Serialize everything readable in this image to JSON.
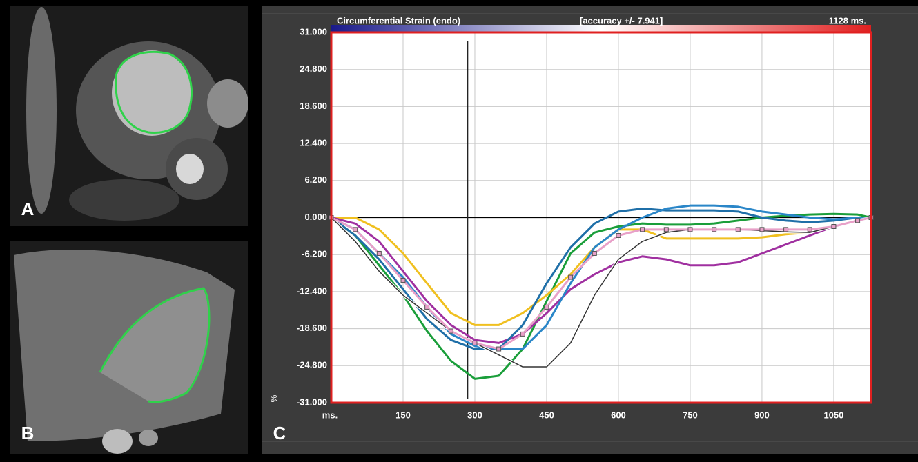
{
  "panel_labels": [
    "A",
    "B",
    "C"
  ],
  "chart_data": {
    "type": "line",
    "title": "Circumferential Strain (endo)",
    "subtitle": "[accuracy +/- 7.941]",
    "duration_label": "1128 ms.",
    "xlabel": "ms.",
    "ylabel": "%",
    "xlim": [
      0,
      1128
    ],
    "ylim": [
      -31,
      31
    ],
    "xticks": [
      150,
      300,
      450,
      600,
      750,
      900,
      1050
    ],
    "yticks": [
      {
        "value": 31,
        "label": "31.000"
      },
      {
        "value": 24.8,
        "label": "24.800"
      },
      {
        "value": 18.6,
        "label": "18.600"
      },
      {
        "value": 12.4,
        "label": "12.400"
      },
      {
        "value": 6.2,
        "label": "6.200"
      },
      {
        "value": 0,
        "label": "0.000"
      },
      {
        "value": -6.2,
        "label": "-6.200"
      },
      {
        "value": -12.4,
        "label": "-12.400"
      },
      {
        "value": -18.6,
        "label": "-18.600"
      },
      {
        "value": -24.8,
        "label": "-24.800"
      },
      {
        "value": -31,
        "label": "-31.000"
      }
    ],
    "grid": true,
    "cursor": 285,
    "x": [
      0,
      50,
      100,
      150,
      200,
      250,
      300,
      350,
      400,
      450,
      500,
      550,
      600,
      650,
      700,
      750,
      800,
      850,
      900,
      950,
      1000,
      1050,
      1100,
      1128
    ],
    "series": [
      {
        "color": "#1a9e3a",
        "values": [
          0,
          -3,
          -8,
          -13,
          -19,
          -24,
          -27,
          -26.5,
          -22,
          -14,
          -6,
          -2.5,
          -1.5,
          -1,
          -1.2,
          -1.2,
          -1,
          -0.5,
          0,
          0.3,
          0.5,
          0.6,
          0.5,
          0
        ]
      },
      {
        "color": "#f0c020",
        "values": [
          0,
          0,
          -2,
          -6,
          -11,
          -16,
          -18,
          -18,
          -16,
          -13,
          -9.5,
          -5,
          -2,
          -2,
          -3.5,
          -3.5,
          -3.5,
          -3.5,
          -3.3,
          -2.8,
          -2.5,
          -1.5,
          -0.5,
          0
        ]
      },
      {
        "color": "#a030a0",
        "values": [
          0,
          -1,
          -4,
          -9,
          -14,
          -18,
          -20.5,
          -21,
          -19.5,
          -16,
          -12,
          -9.5,
          -7.5,
          -6.5,
          -7,
          -8,
          -8,
          -7.5,
          -6,
          -4.5,
          -3,
          -1.5,
          -0.5,
          0
        ]
      },
      {
        "color": "#1f6fa8",
        "values": [
          0,
          -3,
          -7,
          -12,
          -17,
          -20.5,
          -22,
          -22,
          -18,
          -11,
          -5,
          -1,
          1,
          1.5,
          1.2,
          1.2,
          1.2,
          1,
          0,
          -0.5,
          -0.8,
          -0.5,
          0,
          0
        ]
      },
      {
        "color": "#2a86c8",
        "values": [
          0,
          -2,
          -6,
          -10,
          -15,
          -19.5,
          -21.5,
          -22,
          -22,
          -18,
          -11,
          -5,
          -2,
          0,
          1.5,
          2,
          2,
          1.8,
          1,
          0.5,
          0,
          -0.3,
          0,
          0
        ]
      },
      {
        "color": "#333333",
        "values": [
          0,
          -4,
          -9,
          -13,
          -16,
          -19,
          -21,
          -23,
          -25,
          -25,
          -21,
          -13,
          -7,
          -4,
          -2.5,
          -2,
          -2,
          -2,
          -2.2,
          -2.4,
          -2.5,
          -1.5,
          -0.5,
          0
        ]
      },
      {
        "color": "#e8a0c8",
        "markers": true,
        "values": [
          0,
          -2,
          -6,
          -10.5,
          -15,
          -19,
          -21,
          -22,
          -19.5,
          -15,
          -10,
          -6,
          -3,
          -2,
          -2,
          -2,
          -2,
          -2,
          -2,
          -2,
          -2,
          -1.5,
          -0.5,
          0
        ]
      }
    ]
  }
}
